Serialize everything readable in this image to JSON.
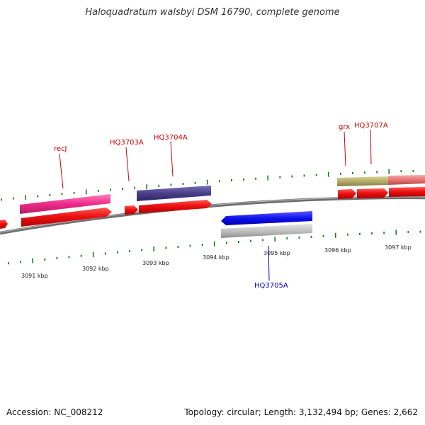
{
  "title": "Haloquadratum walsbyi DSM 16790, complete genome",
  "footer": {
    "accession": "Accession: NC_008212",
    "stats": "Topology: circular; Length: 3,132,494 bp; Genes: 2,662"
  },
  "colors": {
    "backbone": "#808080",
    "tick": "#1a7a1a",
    "cds": "#ee1111",
    "label_red": "#cc0000",
    "label_blue": "#0000cc"
  },
  "scale_labels": [
    "3091 kbp",
    "3092 kbp",
    "3093 kbp",
    "3094 kbp",
    "3095 kbp",
    "3096 kbp",
    "3097 kbp"
  ],
  "gene_labels": [
    {
      "text": "recJ",
      "color": "red"
    },
    {
      "text": "HQ3703A",
      "color": "red"
    },
    {
      "text": "HQ3704A",
      "color": "red"
    },
    {
      "text": "grx",
      "color": "red"
    },
    {
      "text": "HQ3707A",
      "color": "red"
    },
    {
      "text": "HQ3705A",
      "color": "blue"
    }
  ],
  "features": [
    {
      "name": "cds-arrow-left-edge",
      "strand": "+",
      "track": "cds",
      "color": "#ee1111"
    },
    {
      "name": "recJ-gene-bar",
      "strand": "+",
      "track": "gene",
      "color": "#ee2a8a"
    },
    {
      "name": "recJ-cds-arrow",
      "strand": "+",
      "track": "cds",
      "color": "#ee1111"
    },
    {
      "name": "HQ3703A-cds-arrow",
      "strand": "+",
      "track": "cds",
      "color": "#ee1111"
    },
    {
      "name": "HQ3704A-gene-bar",
      "strand": "+",
      "track": "gene",
      "color": "#4a3f8a"
    },
    {
      "name": "HQ3704A-cds-arrow",
      "strand": "+",
      "track": "cds",
      "color": "#ee1111"
    },
    {
      "name": "HQ3705A-cds-arrow",
      "strand": "-",
      "track": "cds",
      "color": "#1111ee"
    },
    {
      "name": "HQ3705A-gene-bar",
      "strand": "-",
      "track": "gene",
      "color": "#bbbbbb"
    },
    {
      "name": "grx-gene-bar",
      "strand": "+",
      "track": "gene",
      "color": "#b5ad6a"
    },
    {
      "name": "grx-cds-arrow",
      "strand": "+",
      "track": "cds",
      "color": "#ee1111"
    },
    {
      "name": "HQ3707A-gene-bar",
      "strand": "+",
      "track": "gene",
      "color": "#e57373"
    },
    {
      "name": "HQ3707A-cds-arrow",
      "strand": "+",
      "track": "cds",
      "color": "#ee1111"
    }
  ]
}
